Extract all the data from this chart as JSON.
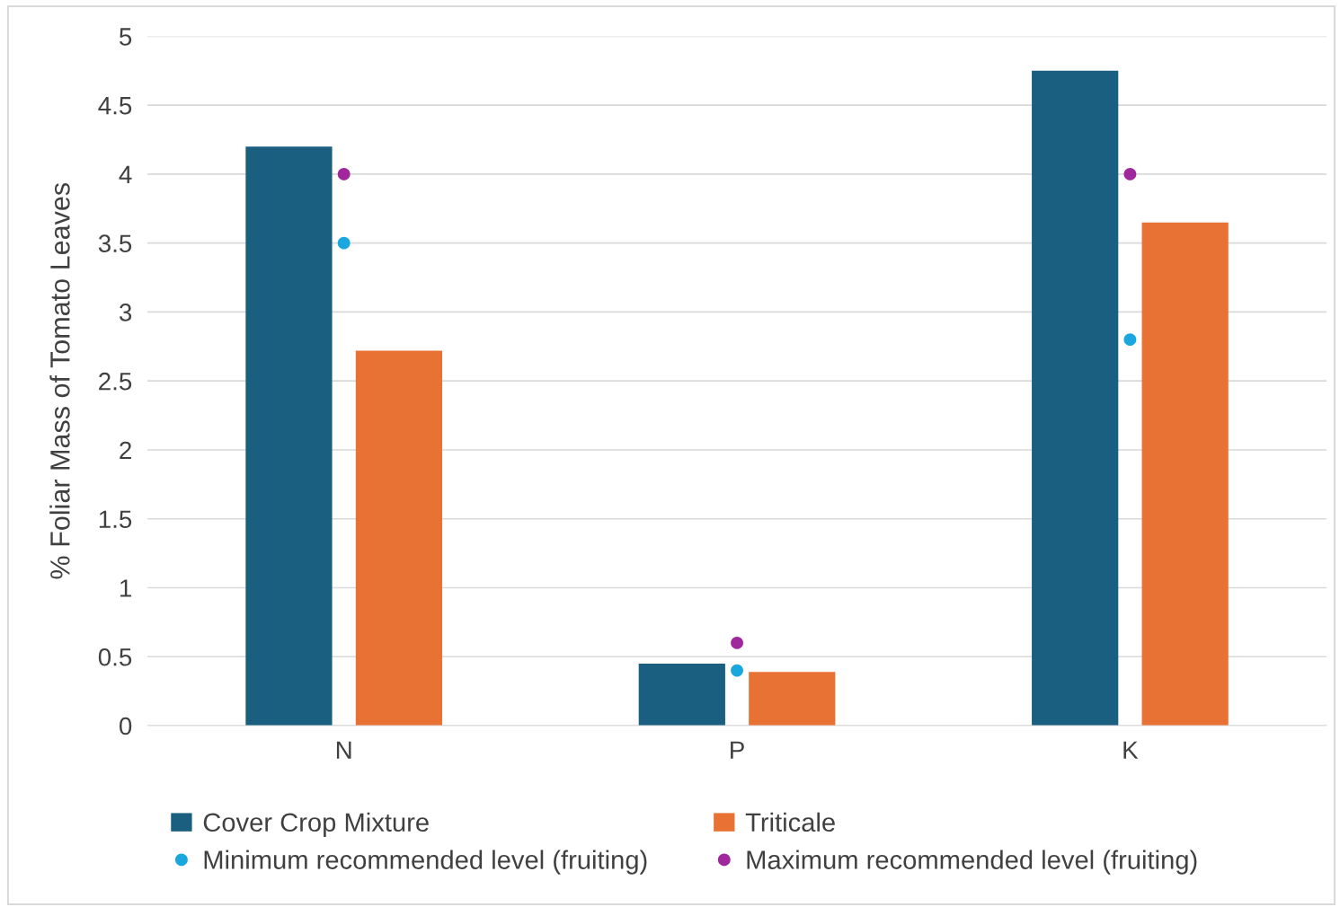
{
  "chart_data": {
    "type": "bar",
    "ylabel": "% Foliar Mass of Tomato Leaves",
    "categories": [
      "N",
      "P",
      "K"
    ],
    "series": [
      {
        "name": "Cover Crop Mixture",
        "color": "#1a5e80",
        "values": [
          4.2,
          0.45,
          4.75
        ]
      },
      {
        "name": "Triticale",
        "color": "#e87234",
        "values": [
          2.72,
          0.39,
          3.65
        ]
      },
      {
        "name": "Minimum recommended level (fruiting)",
        "type": "scatter",
        "x": [
          "N",
          "P",
          "K"
        ],
        "color": "#1aa7df",
        "values": [
          3.5,
          0.4,
          2.8
        ]
      },
      {
        "name": "Maximum recommended level (fruiting)",
        "type": "scatter",
        "x": [
          "N",
          "P",
          "K"
        ],
        "color": "#a0289c",
        "values": [
          4.0,
          0.6,
          4.0
        ]
      }
    ],
    "ylim": [
      0,
      5
    ],
    "yticks": [
      0,
      0.5,
      1,
      1.5,
      2,
      2.5,
      3,
      3.5,
      4,
      4.5,
      5
    ],
    "grid": "y",
    "legend": "bottom",
    "marker": "circle"
  }
}
